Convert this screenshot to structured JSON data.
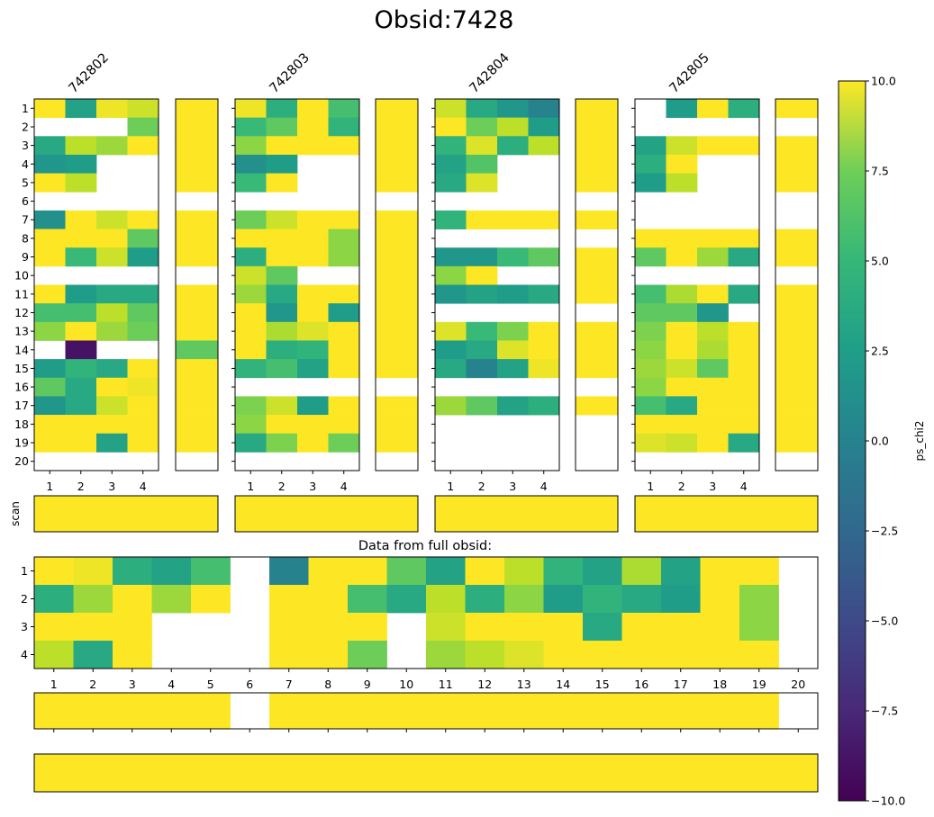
{
  "chart_data": {
    "type": "heatmap",
    "title": "Obsid:7428",
    "colorbar": {
      "label": "ps_chi2",
      "vmin": -10,
      "vmax": 10,
      "colormap": "viridis",
      "ticks": [
        10.0,
        7.5,
        5.0,
        2.5,
        0.0,
        -2.5,
        -5.0,
        -7.5,
        -10.0
      ],
      "tick_labels": [
        "10.0",
        "7.5",
        "5.0",
        "2.5",
        "0.0",
        "−2.5",
        "−5.0",
        "−7.5",
        "−10.0"
      ]
    },
    "scan_label": "scan",
    "full_title": "Data from full obsid:",
    "scan_ticks": [
      "1",
      "2",
      "3",
      "4",
      "5",
      "6",
      "7",
      "8",
      "9",
      "10",
      "11",
      "12",
      "13",
      "14",
      "15",
      "16",
      "17",
      "18",
      "19",
      "20"
    ],
    "feed_ticks": [
      "1",
      "2",
      "3",
      "4"
    ],
    "scans": [
      {
        "name": "742802",
        "grid": [
          [
            10,
            1.5,
            9.5,
            8.5
          ],
          [
            null,
            null,
            null,
            5.5
          ],
          [
            2,
            8,
            7,
            10
          ],
          [
            0.5,
            1,
            null,
            null
          ],
          [
            10,
            8,
            null,
            null
          ],
          [
            null,
            null,
            null,
            null
          ],
          [
            0,
            10,
            8.5,
            10
          ],
          [
            10,
            10,
            10,
            5
          ],
          [
            10,
            3.5,
            8.5,
            1
          ],
          [
            null,
            null,
            null,
            null
          ],
          [
            10,
            1,
            2,
            2
          ],
          [
            4,
            4,
            8,
            5
          ],
          [
            6.5,
            10,
            7,
            5.5
          ],
          [
            null,
            -9,
            null,
            null
          ],
          [
            1,
            3,
            2,
            10
          ],
          [
            5,
            2,
            10,
            9.5
          ],
          [
            0.5,
            2,
            8.5,
            10
          ],
          [
            10,
            10,
            10,
            10
          ],
          [
            10,
            10,
            1.5,
            10
          ],
          [
            null,
            null,
            null,
            null
          ]
        ],
        "side": [
          10,
          10,
          10,
          10,
          10,
          null,
          10,
          10,
          10,
          null,
          10,
          10,
          10,
          5,
          10,
          10,
          10,
          10,
          10,
          null
        ],
        "summary": 10
      },
      {
        "name": "742803",
        "grid": [
          [
            9.5,
            2.5,
            10,
            4
          ],
          [
            3.5,
            5,
            10,
            3
          ],
          [
            6.5,
            10,
            10,
            10
          ],
          [
            0,
            1,
            null,
            null
          ],
          [
            3.5,
            10,
            null,
            null
          ],
          [
            null,
            null,
            null,
            null
          ],
          [
            5.5,
            8.5,
            10,
            10
          ],
          [
            10,
            10,
            10,
            6.5
          ],
          [
            2.5,
            10,
            10,
            6.5
          ],
          [
            8.5,
            5,
            null,
            null
          ],
          [
            7,
            2,
            10,
            10
          ],
          [
            10,
            0.5,
            10,
            1
          ],
          [
            10,
            7.5,
            9,
            10
          ],
          [
            10,
            2.5,
            3,
            10
          ],
          [
            3,
            4,
            1.5,
            10
          ],
          [
            null,
            null,
            null,
            null
          ],
          [
            6,
            8.5,
            1,
            10
          ],
          [
            6.5,
            10,
            10,
            10
          ],
          [
            2,
            6,
            10,
            5.5
          ],
          [
            null,
            null,
            null,
            null
          ]
        ],
        "side": [
          10,
          10,
          10,
          10,
          10,
          null,
          10,
          10,
          10,
          10,
          10,
          10,
          10,
          10,
          10,
          null,
          10,
          10,
          10,
          null
        ],
        "summary": 10
      },
      {
        "name": "742804",
        "grid": [
          [
            8.5,
            2,
            0.5,
            -1
          ],
          [
            10,
            5.5,
            8,
            1
          ],
          [
            3,
            9,
            2.5,
            8
          ],
          [
            1.5,
            4.5,
            null,
            null
          ],
          [
            2,
            9,
            null,
            null
          ],
          [
            null,
            null,
            null,
            null
          ],
          [
            3,
            10,
            10,
            10
          ],
          [
            null,
            null,
            null,
            null
          ],
          [
            0.5,
            0.5,
            3.5,
            5
          ],
          [
            6.5,
            10,
            null,
            null
          ],
          [
            0.5,
            1.5,
            1,
            2
          ],
          [
            null,
            null,
            null,
            null
          ],
          [
            9,
            3.5,
            6,
            10
          ],
          [
            1,
            2,
            9,
            10
          ],
          [
            2,
            -1,
            1.5,
            9.5
          ],
          [
            null,
            null,
            null,
            null
          ],
          [
            7,
            5,
            1.5,
            2.5
          ],
          [
            null,
            null,
            null,
            null
          ],
          [
            null,
            null,
            null,
            null
          ],
          [
            null,
            null,
            null,
            null
          ]
        ],
        "side": [
          10,
          10,
          10,
          10,
          10,
          null,
          10,
          null,
          10,
          10,
          10,
          null,
          10,
          10,
          10,
          null,
          10,
          null,
          null,
          null
        ],
        "summary": 10
      },
      {
        "name": "742805",
        "grid": [
          [
            null,
            1,
            10,
            2.5
          ],
          [
            null,
            null,
            null,
            null
          ],
          [
            1.5,
            8.5,
            10,
            10
          ],
          [
            2.5,
            10,
            null,
            null
          ],
          [
            1,
            8,
            null,
            null
          ],
          [
            null,
            null,
            null,
            null
          ],
          [
            null,
            null,
            null,
            null
          ],
          [
            10,
            10,
            10,
            10
          ],
          [
            5,
            10,
            7,
            2
          ],
          [
            null,
            null,
            null,
            null
          ],
          [
            4,
            7.5,
            10,
            2
          ],
          [
            5,
            5,
            0.5,
            null
          ],
          [
            6,
            10,
            8,
            10
          ],
          [
            6.5,
            10,
            7.5,
            10
          ],
          [
            7,
            8.5,
            5,
            10
          ],
          [
            6.5,
            10,
            10,
            10
          ],
          [
            4,
            2,
            10,
            10
          ],
          [
            10,
            10,
            10,
            10
          ],
          [
            9,
            8.5,
            10,
            2
          ],
          [
            null,
            null,
            null,
            null
          ]
        ],
        "side": [
          10,
          null,
          10,
          10,
          10,
          null,
          null,
          10,
          10,
          null,
          10,
          10,
          10,
          10,
          10,
          10,
          10,
          10,
          10,
          null
        ],
        "summary": 10
      }
    ],
    "full": {
      "grid": [
        [
          10,
          9.5,
          2.5,
          1.5,
          4,
          null,
          -1,
          10,
          10,
          5,
          1.5,
          10,
          8,
          3,
          1.5,
          7.5,
          1.5,
          10,
          10,
          null
        ],
        [
          2.5,
          7,
          10,
          7,
          10,
          null,
          10,
          10,
          4,
          2,
          8,
          2.5,
          6.5,
          1,
          3,
          2,
          1,
          10,
          6.5,
          null
        ],
        [
          10,
          10,
          10,
          null,
          null,
          null,
          10,
          10,
          10,
          null,
          8.5,
          10,
          10,
          10,
          2,
          10,
          10,
          10,
          6.5,
          null
        ],
        [
          8,
          2,
          10,
          null,
          null,
          null,
          10,
          10,
          5.5,
          null,
          7,
          8,
          9,
          10,
          10,
          10,
          10,
          10,
          10,
          null
        ]
      ],
      "scan_summary": [
        10,
        10,
        10,
        10,
        10,
        null,
        10,
        10,
        10,
        10,
        10,
        10,
        10,
        10,
        10,
        10,
        10,
        10,
        10,
        null
      ],
      "total": 10
    }
  }
}
